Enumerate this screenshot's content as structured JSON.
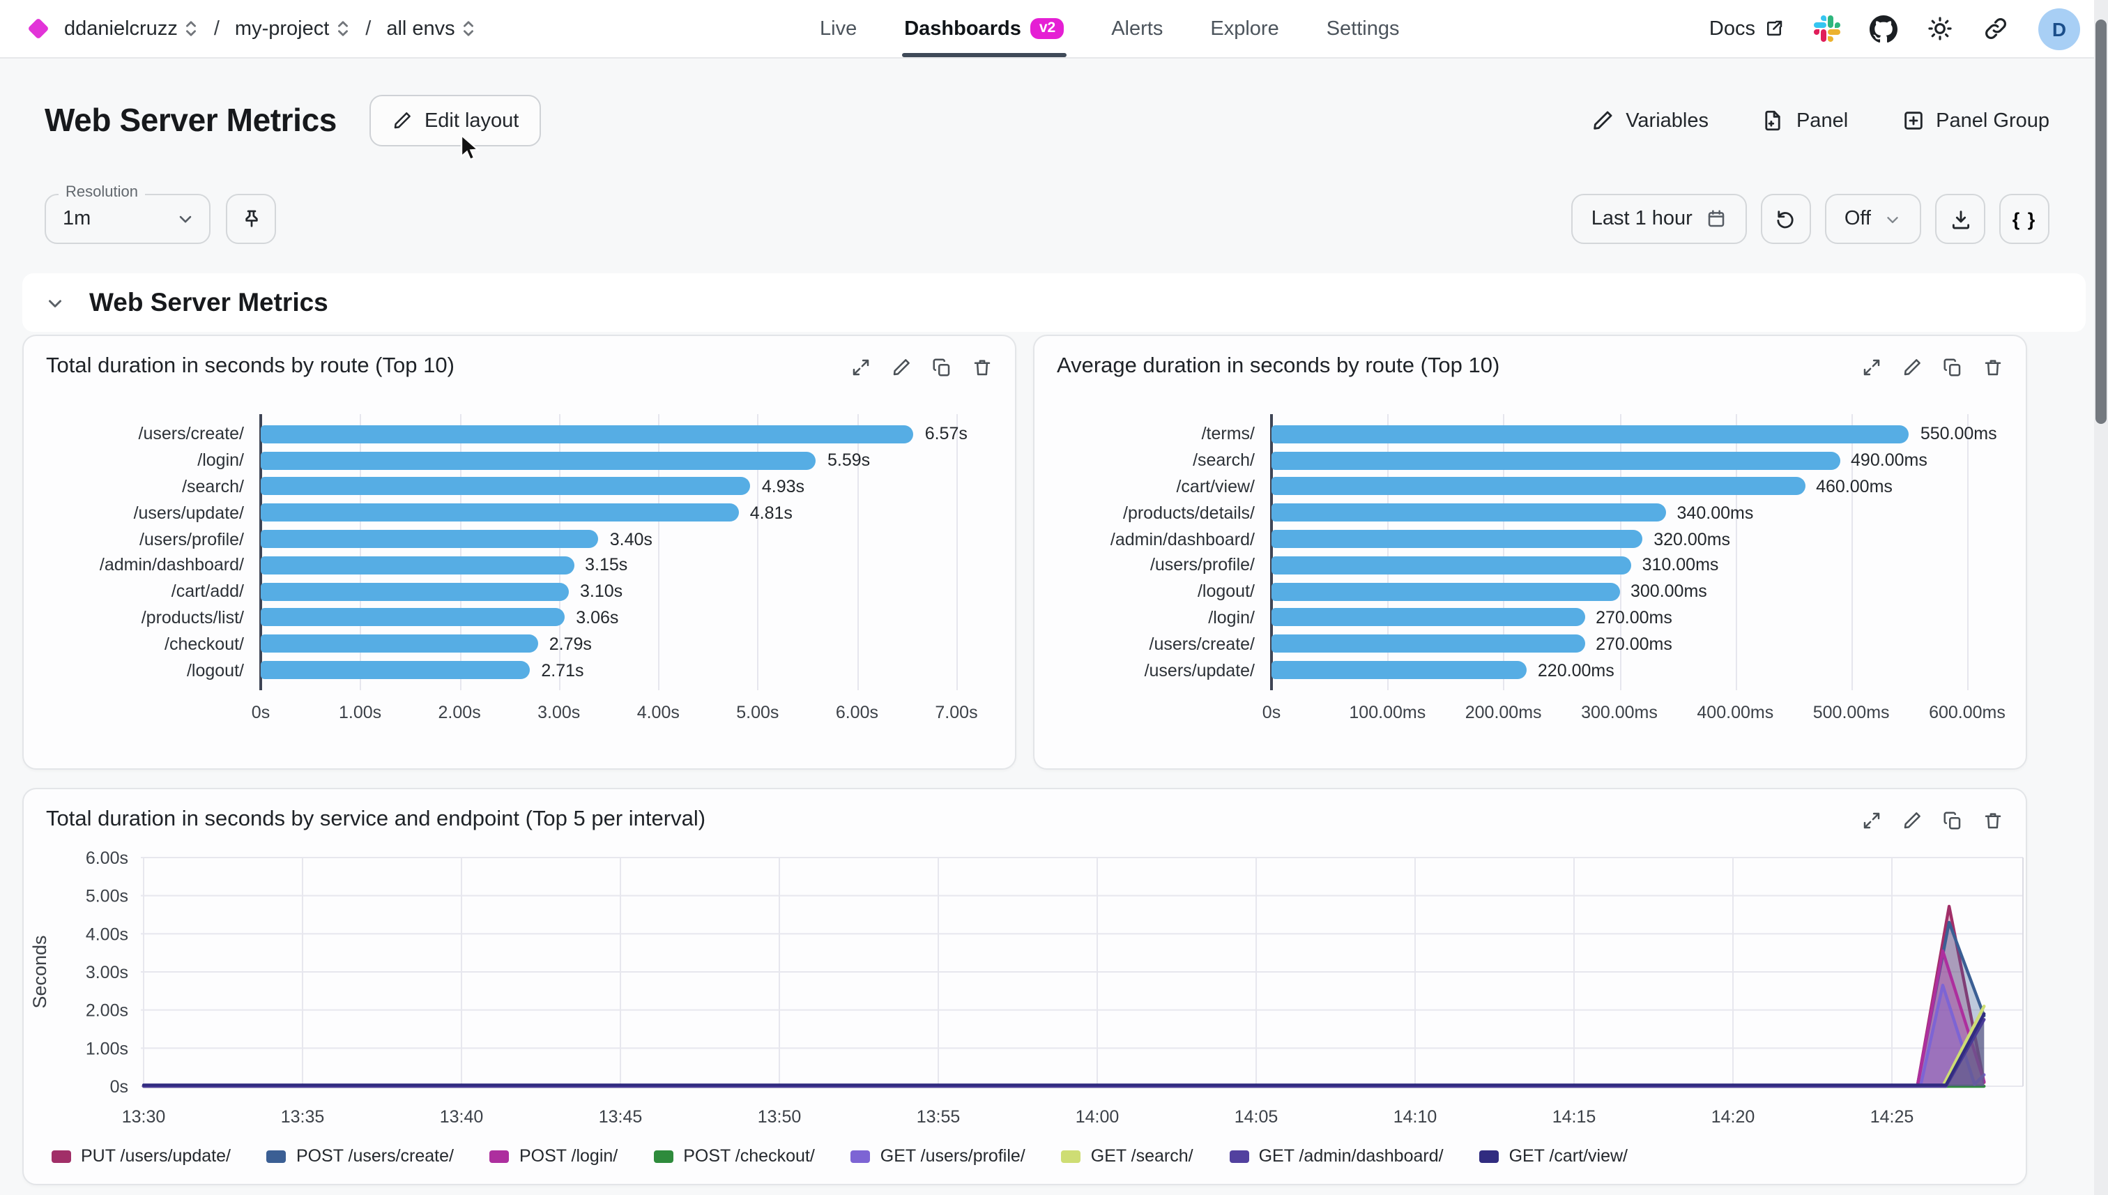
{
  "header": {
    "brand_color": "#e234d8",
    "breadcrumb": [
      {
        "label": "ddanielcruzz"
      },
      {
        "label": "my-project"
      },
      {
        "label": "all envs"
      }
    ],
    "nav": [
      {
        "label": "Live",
        "active": false
      },
      {
        "label": "Dashboards",
        "active": true,
        "badge": "v2"
      },
      {
        "label": "Alerts",
        "active": false
      },
      {
        "label": "Explore",
        "active": false
      },
      {
        "label": "Settings",
        "active": false
      }
    ],
    "docs_label": "Docs",
    "avatar_initial": "D"
  },
  "toolbar": {
    "page_title": "Web Server Metrics",
    "edit_layout_label": "Edit layout",
    "actions": [
      {
        "label": "Variables",
        "icon": "pencil-icon"
      },
      {
        "label": "Panel",
        "icon": "file-plus-icon"
      },
      {
        "label": "Panel Group",
        "icon": "square-plus-icon"
      }
    ]
  },
  "controls": {
    "resolution_label": "Resolution",
    "resolution_value": "1m",
    "time_range": "Last 1 hour",
    "live_value": "Off",
    "braces_label": "{ }"
  },
  "section": {
    "title": "Web Server Metrics"
  },
  "panels": [
    {
      "title": "Total duration in seconds by route (Top 10)",
      "chart_data": {
        "type": "bar",
        "orientation": "horizontal",
        "bar_color": "#56ade4",
        "categories": [
          "/users/create/",
          "/login/",
          "/search/",
          "/users/update/",
          "/users/profile/",
          "/admin/dashboard/",
          "/cart/add/",
          "/products/list/",
          "/checkout/",
          "/logout/"
        ],
        "values": [
          6.57,
          5.59,
          4.93,
          4.81,
          3.4,
          3.15,
          3.1,
          3.06,
          2.79,
          2.71
        ],
        "value_labels": [
          "6.57s",
          "5.59s",
          "4.93s",
          "4.81s",
          "3.40s",
          "3.15s",
          "3.10s",
          "3.06s",
          "2.79s",
          "2.71s"
        ],
        "xticks": [
          "0s",
          "1.00s",
          "2.00s",
          "3.00s",
          "4.00s",
          "5.00s",
          "6.00s",
          "7.00s"
        ],
        "xmax": 7
      }
    },
    {
      "title": "Average duration in seconds by route (Top 10)",
      "chart_data": {
        "type": "bar",
        "orientation": "horizontal",
        "bar_color": "#56ade4",
        "categories": [
          "/terms/",
          "/search/",
          "/cart/view/",
          "/products/details/",
          "/admin/dashboard/",
          "/users/profile/",
          "/logout/",
          "/login/",
          "/users/create/",
          "/users/update/"
        ],
        "values": [
          550,
          490,
          460,
          340,
          320,
          310,
          300,
          270,
          270,
          220
        ],
        "value_labels": [
          "550.00ms",
          "490.00ms",
          "460.00ms",
          "340.00ms",
          "320.00ms",
          "310.00ms",
          "300.00ms",
          "270.00ms",
          "270.00ms",
          "220.00ms"
        ],
        "xticks": [
          "0s",
          "100.00ms",
          "200.00ms",
          "300.00ms",
          "400.00ms",
          "500.00ms",
          "600.00ms"
        ],
        "xmax": 600
      }
    },
    {
      "title": "Total duration in seconds by service and endpoint (Top 5 per interval)",
      "chart_data": {
        "type": "area",
        "ylabel": "Seconds",
        "yticks": [
          "0s",
          "1.00s",
          "2.00s",
          "3.00s",
          "4.00s",
          "5.00s",
          "6.00s"
        ],
        "ymax": 6,
        "xticks": [
          "13:30",
          "13:35",
          "13:40",
          "13:45",
          "13:50",
          "13:55",
          "14:00",
          "14:05",
          "14:10",
          "14:15",
          "14:20",
          "14:25"
        ],
        "minutes_per_tick": 5,
        "x_end_minute": 57.9,
        "series": [
          {
            "name": "PUT /users/update/",
            "color": "#a12f68",
            "points": [
              [
                0,
                0
              ],
              [
                55.8,
                0
              ],
              [
                56.8,
                4.72
              ],
              [
                57.9,
                0.1
              ]
            ]
          },
          {
            "name": "POST /users/create/",
            "color": "#3b5f94",
            "points": [
              [
                0,
                0
              ],
              [
                55.8,
                0
              ],
              [
                56.8,
                4.3
              ],
              [
                57.9,
                1.85
              ]
            ]
          },
          {
            "name": "POST /login/",
            "color": "#ad2f9e",
            "points": [
              [
                0,
                0
              ],
              [
                55.8,
                0
              ],
              [
                56.6,
                3.55
              ],
              [
                57.9,
                0.12
              ]
            ]
          },
          {
            "name": "POST /checkout/",
            "color": "#2e8b3c",
            "points": [
              [
                0,
                0
              ],
              [
                57.9,
                0
              ]
            ]
          },
          {
            "name": "GET /users/profile/",
            "color": "#7d64d4",
            "points": [
              [
                0,
                0
              ],
              [
                55.9,
                0
              ],
              [
                56.6,
                2.65
              ],
              [
                57.6,
                0.05
              ],
              [
                57.9,
                0.3
              ]
            ]
          },
          {
            "name": "GET /search/",
            "color": "#cedd74",
            "points": [
              [
                0,
                0
              ],
              [
                56.6,
                0
              ],
              [
                57.9,
                2.1
              ]
            ]
          },
          {
            "name": "GET /admin/dashboard/",
            "color": "#52419f",
            "points": [
              [
                0,
                0
              ],
              [
                56.7,
                0
              ],
              [
                57.9,
                1.75
              ]
            ]
          },
          {
            "name": "GET /cart/view/",
            "color": "#312c80",
            "points": [
              [
                0,
                0.03
              ],
              [
                56.7,
                0.03
              ],
              [
                57.9,
                1.9
              ]
            ]
          }
        ]
      }
    }
  ]
}
